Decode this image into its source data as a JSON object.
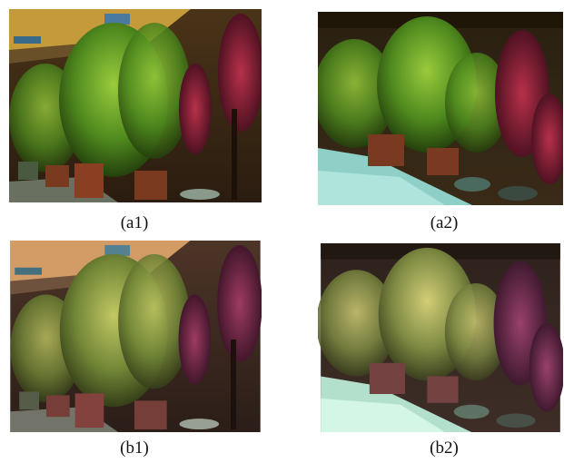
{
  "figure": {
    "captions": {
      "a1": "(a1)",
      "a2": "(a2)",
      "b1": "(b1)",
      "b2": "(b2)"
    }
  }
}
